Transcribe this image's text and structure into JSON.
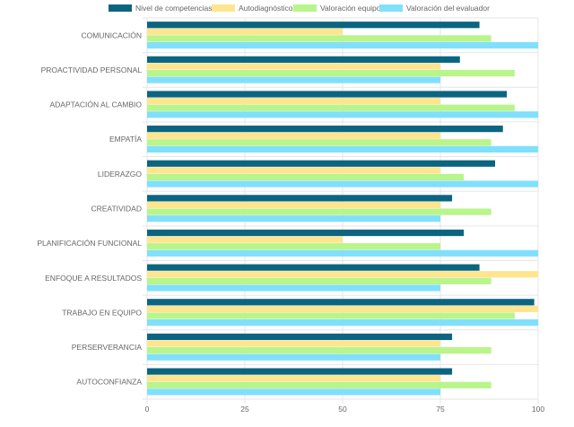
{
  "chart_data": {
    "type": "bar",
    "orientation": "horizontal",
    "categories": [
      "COMUNICACIÓN",
      "PROACTIVIDAD PERSONAL",
      "ADAPTACIÓN AL CAMBIO",
      "EMPATÍA",
      "LIDERAZGO",
      "CREATIVIDAD",
      "PLANIFICACIÓN FUNCIONAL",
      "ENFOQUE A RESULTADOS",
      "TRABAJO EN EQUIPO",
      "PERSERVERANCIA",
      "AUTOCONFIANZA"
    ],
    "series": [
      {
        "name": "Nivel de competencias",
        "color": "#0b6580",
        "values": [
          85,
          80,
          92,
          91,
          89,
          78,
          81,
          85,
          99,
          78,
          78
        ]
      },
      {
        "name": "Autodiagnóstico",
        "color": "#ffe58f",
        "values": [
          50,
          75,
          75,
          75,
          75,
          75,
          50,
          100,
          100,
          75,
          75
        ]
      },
      {
        "name": "Valoración equipo",
        "color": "#b8f58a",
        "values": [
          88,
          94,
          94,
          88,
          81,
          88,
          75,
          88,
          94,
          88,
          88
        ]
      },
      {
        "name": "Valoración del evaluador",
        "color": "#80e0fb",
        "values": [
          100,
          75,
          100,
          100,
          100,
          75,
          100,
          75,
          100,
          75,
          75
        ]
      }
    ],
    "xlim": [
      0,
      100
    ],
    "xticks": [
      "0",
      "25",
      "50",
      "75",
      "100"
    ],
    "grid": true,
    "legend_position": "top"
  }
}
